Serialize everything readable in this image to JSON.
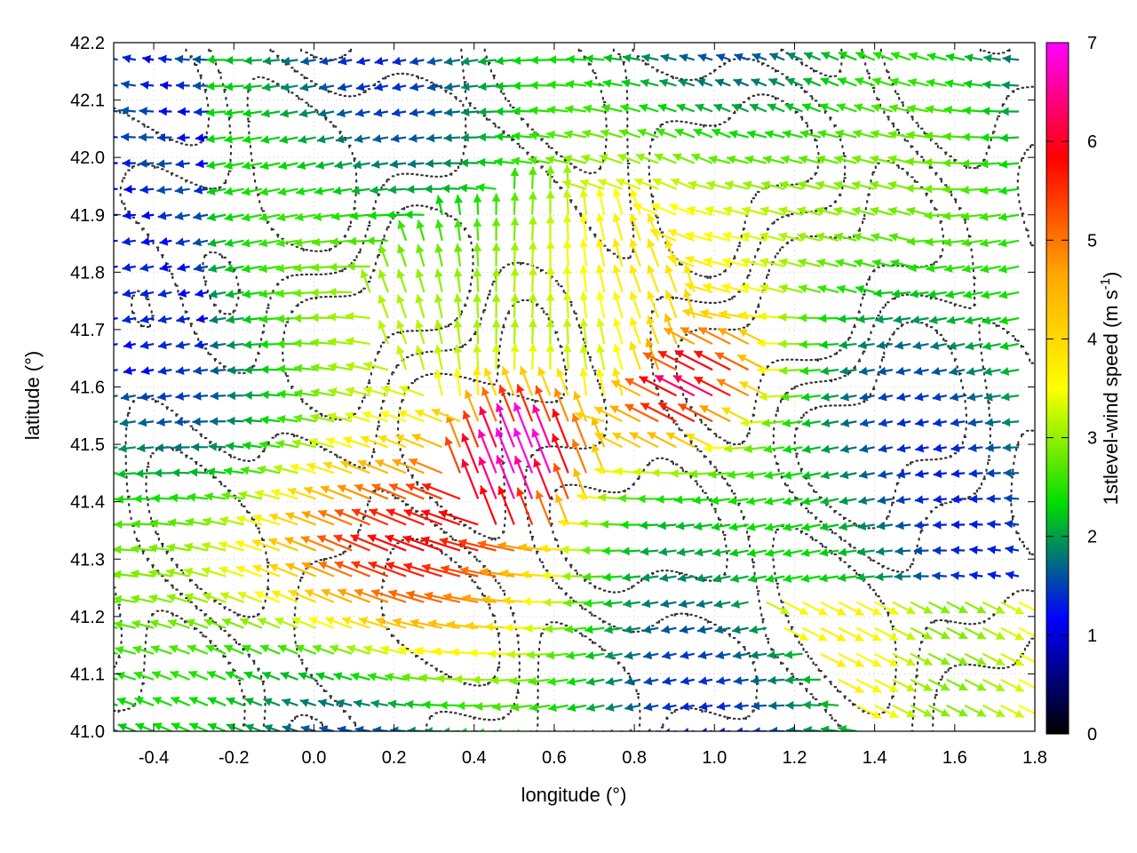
{
  "chart_data": {
    "type": "vector-field",
    "xlabel": "longitude (°)",
    "ylabel": "latitude (°)",
    "colorbar_label_prefix": "1stlevel-wind speed (m s",
    "colorbar_label_exp": "-1",
    "colorbar_label_suffix": ")",
    "xlim": [
      -0.5,
      1.8
    ],
    "ylim": [
      41.0,
      42.2
    ],
    "x_ticks": [
      "-0.4",
      "-0.2",
      "0.0",
      "0.2",
      "0.4",
      "0.6",
      "0.8",
      "1.0",
      "1.2",
      "1.4",
      "1.6",
      "1.8"
    ],
    "x_tick_values": [
      -0.4,
      -0.2,
      0.0,
      0.2,
      0.4,
      0.6,
      0.8,
      1.0,
      1.2,
      1.4,
      1.6,
      1.8
    ],
    "y_ticks": [
      "41.0",
      "41.1",
      "41.2",
      "41.3",
      "41.4",
      "41.5",
      "41.6",
      "41.7",
      "41.8",
      "41.9",
      "42.0",
      "42.1",
      "42.2"
    ],
    "y_tick_values": [
      41.0,
      41.1,
      41.2,
      41.3,
      41.4,
      41.5,
      41.6,
      41.7,
      41.8,
      41.9,
      42.0,
      42.1,
      42.2
    ],
    "colorbar_range": [
      0,
      7
    ],
    "colorbar_ticks": [
      "0",
      "1",
      "2",
      "3",
      "4",
      "5",
      "6",
      "7"
    ],
    "colorbar_tick_values": [
      0,
      1,
      2,
      3,
      4,
      5,
      6,
      7
    ],
    "colorbar_stops": [
      "#000000",
      "#0000ff",
      "#00dd00",
      "#ffff00",
      "#ffa500",
      "#ff0000",
      "#ff00ff"
    ],
    "grid": "dotted",
    "contour_color": "#333333"
  }
}
